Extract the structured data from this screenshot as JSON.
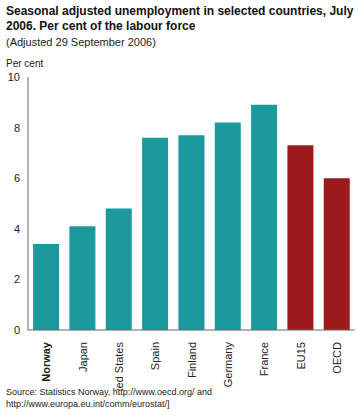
{
  "chart_data": {
    "type": "bar",
    "title": "Seasonal adjusted unemployment in selected countries, July 2006. Per cent of the labour force",
    "subtitle": "(Adjusted 29 September 2006)",
    "y_label": "Per cent",
    "categories": [
      "Norway",
      "Japan",
      "United States",
      "Spain",
      "Finland",
      "Germany",
      "France",
      "EU15",
      "OECD"
    ],
    "values": [
      3.4,
      4.1,
      4.8,
      7.6,
      7.7,
      8.2,
      8.9,
      7.3,
      6.0
    ],
    "colors": [
      "#1a9a9c",
      "#1a9a9c",
      "#1a9a9c",
      "#1a9a9c",
      "#1a9a9c",
      "#1a9a9c",
      "#1a9a9c",
      "#9c1a1c",
      "#9c1a1c"
    ],
    "ylim": [
      0,
      10
    ],
    "yticks": [
      0,
      2,
      4,
      6,
      8,
      10
    ],
    "grid": false,
    "source": "Source: Statistics Norway, http://www.oecd.org/ and http://www.europa.eu.int/comm/eurostat/]"
  }
}
